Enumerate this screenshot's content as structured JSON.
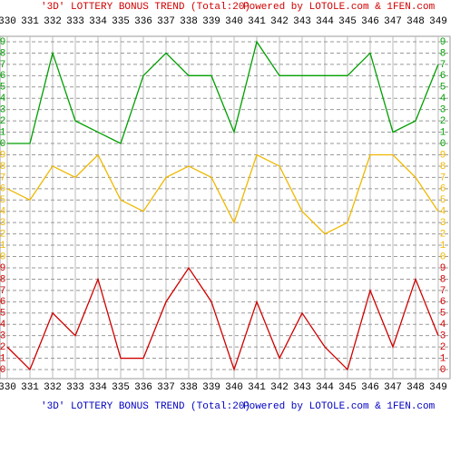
{
  "chart_data": {
    "type": "line",
    "title": "'3D' LOTTERY BONUS TREND (Total:20)",
    "subtitle": "Powered by LOTOLE.com & 1FEN.com",
    "categories": [
      "330",
      "331",
      "332",
      "333",
      "334",
      "335",
      "336",
      "337",
      "338",
      "339",
      "340",
      "341",
      "342",
      "343",
      "344",
      "345",
      "346",
      "347",
      "348",
      "349"
    ],
    "ylim": [
      0,
      9
    ],
    "yticks": [
      0,
      1,
      2,
      3,
      4,
      5,
      6,
      7,
      8,
      9
    ],
    "grid": true,
    "series": [
      {
        "color": "#00a000",
        "values": [
          0,
          0,
          8,
          2,
          1,
          0,
          6,
          8,
          6,
          6,
          1,
          9,
          6,
          6,
          6,
          6,
          8,
          1,
          2,
          7
        ]
      },
      {
        "color": "#f0b800",
        "values": [
          6,
          5,
          8,
          7,
          9,
          5,
          4,
          7,
          8,
          7,
          3,
          9,
          8,
          4,
          2,
          3,
          9,
          9,
          7,
          4
        ]
      },
      {
        "color": "#d00000",
        "values": [
          2,
          0,
          5,
          3,
          8,
          1,
          1,
          6,
          9,
          6,
          0,
          6,
          1,
          5,
          2,
          0,
          7,
          2,
          8,
          3
        ]
      }
    ]
  }
}
